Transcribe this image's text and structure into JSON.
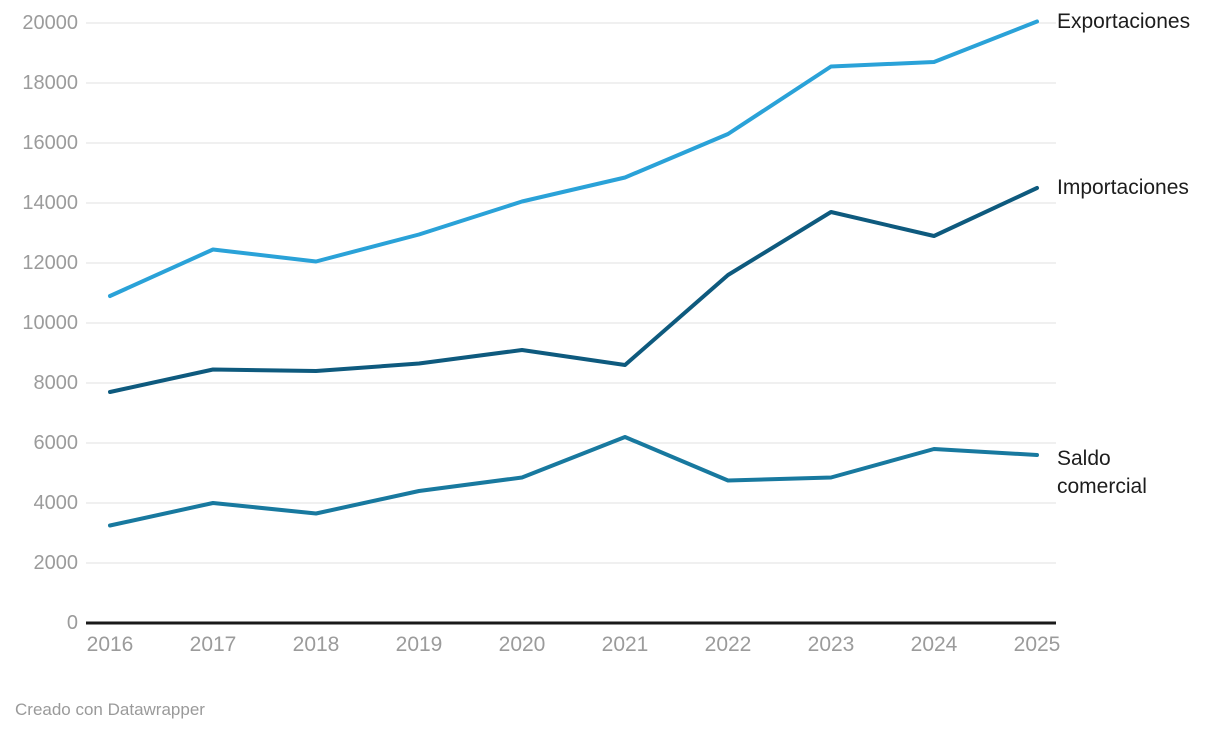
{
  "chart_data": {
    "type": "line",
    "x": [
      2016,
      2017,
      2018,
      2019,
      2020,
      2021,
      2022,
      2023,
      2024,
      2025
    ],
    "series": [
      {
        "name": "Exportaciones",
        "color": "#2aa2d8",
        "values": [
          10900,
          12450,
          12050,
          12950,
          14050,
          14850,
          16300,
          18550,
          18700,
          20050
        ]
      },
      {
        "name": "Importaciones",
        "color": "#0e5a7e",
        "values": [
          7700,
          8450,
          8400,
          8650,
          9100,
          8600,
          11600,
          13700,
          12900,
          14500
        ]
      },
      {
        "name": "Saldo comercial",
        "color": "#18799f",
        "values": [
          3250,
          4000,
          3650,
          4400,
          4850,
          6200,
          4750,
          4850,
          5800,
          5600
        ]
      }
    ],
    "title": "",
    "xlabel": "",
    "ylabel": "",
    "ylim": [
      0,
      20000
    ],
    "y_tick_step": 2000,
    "grid": true,
    "legend_position": "direct-labels-right"
  },
  "axes": {
    "y_ticks": [
      "0",
      "2000",
      "4000",
      "6000",
      "8000",
      "10000",
      "12000",
      "14000",
      "16000",
      "18000",
      "20000"
    ],
    "x_ticks": [
      "2016",
      "2017",
      "2018",
      "2019",
      "2020",
      "2021",
      "2022",
      "2023",
      "2024",
      "2025"
    ]
  },
  "colors": {
    "gridline": "#e8e8e8",
    "axis_line": "#1a1a1a",
    "tick_text": "#9b9b9b",
    "label_text": "#1d1d1d",
    "footer_text": "#9a9a9a",
    "background": "#ffffff"
  },
  "footer": {
    "attribution": "Creado con Datawrapper"
  }
}
